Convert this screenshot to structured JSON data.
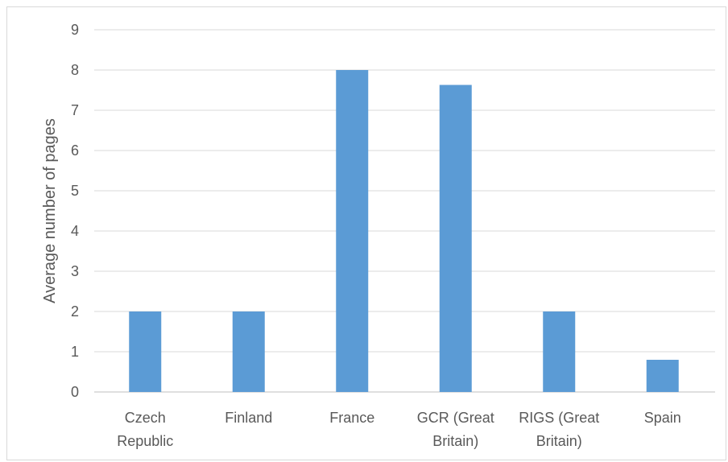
{
  "chart_data": {
    "type": "bar",
    "title": "",
    "xlabel": "",
    "ylabel": "Average number of pages",
    "ylim": [
      0,
      9
    ],
    "yticks": [
      0,
      1,
      2,
      3,
      4,
      5,
      6,
      7,
      8,
      9
    ],
    "grid": true,
    "legend": "none",
    "bar_color": "#5b9bd5",
    "categories": [
      [
        "Czech",
        "Republic"
      ],
      [
        "Finland"
      ],
      [
        "France"
      ],
      [
        "GCR (Great",
        "Britain)"
      ],
      [
        "RIGS (Great",
        "Britain)"
      ],
      [
        "Spain"
      ]
    ],
    "values": [
      2,
      2,
      8,
      7.63,
      2,
      0.8
    ]
  }
}
